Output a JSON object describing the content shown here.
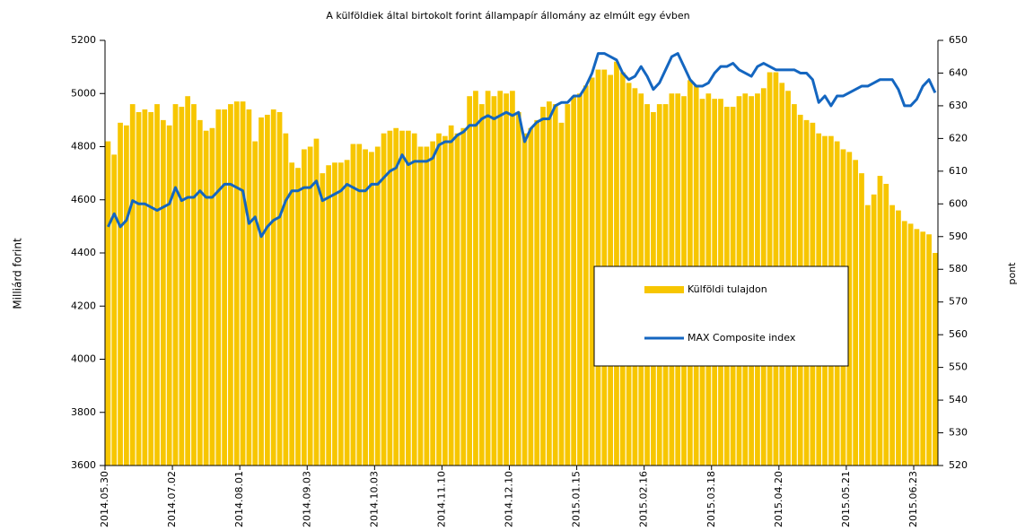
{
  "chart_data": {
    "type": "bar",
    "title": "A külföldiek által birtokolt forint állampapír állomány az elmúlt egy évben",
    "y_label": "Milliárd forint",
    "y2_label": "pont",
    "categories": [
      "2014.05.30",
      null,
      null,
      null,
      null,
      null,
      null,
      null,
      null,
      null,
      null,
      "2014.07.02",
      null,
      null,
      null,
      null,
      null,
      null,
      null,
      null,
      null,
      null,
      "2014.08.01",
      null,
      null,
      null,
      null,
      null,
      null,
      null,
      null,
      null,
      null,
      "2014.09.03",
      null,
      null,
      null,
      null,
      null,
      null,
      null,
      null,
      null,
      null,
      "2014.10.03",
      null,
      null,
      null,
      null,
      null,
      null,
      null,
      null,
      null,
      null,
      "2014.11.10",
      null,
      null,
      null,
      null,
      null,
      null,
      null,
      null,
      null,
      null,
      "2014.12.10",
      null,
      null,
      null,
      null,
      null,
      null,
      null,
      null,
      null,
      null,
      "2015.01.15",
      null,
      null,
      null,
      null,
      null,
      null,
      null,
      null,
      null,
      null,
      "2015.02.16",
      null,
      null,
      null,
      null,
      null,
      null,
      null,
      null,
      null,
      null,
      "2015.03.18",
      null,
      null,
      null,
      null,
      null,
      null,
      null,
      null,
      null,
      null,
      "2015.04.20",
      null,
      null,
      null,
      null,
      null,
      null,
      null,
      null,
      null,
      null,
      "2015.05.21",
      null,
      null,
      null,
      null,
      null,
      null,
      null,
      null,
      null,
      null,
      "2015.06.23",
      null,
      null,
      null
    ],
    "series": [
      {
        "name": "Külföldi tulajdon",
        "color": "#f7c600",
        "type": "bar",
        "axis": "y",
        "values": [
          4820,
          4770,
          4890,
          4880,
          4960,
          4930,
          4940,
          4930,
          4960,
          4900,
          4880,
          4960,
          4950,
          4990,
          4960,
          4900,
          4860,
          4870,
          4940,
          4940,
          4960,
          4970,
          4970,
          4940,
          4820,
          4910,
          4920,
          4940,
          4930,
          4850,
          4740,
          4720,
          4790,
          4800,
          4830,
          4700,
          4730,
          4740,
          4740,
          4750,
          4810,
          4810,
          4790,
          4780,
          4800,
          4850,
          4860,
          4870,
          4860,
          4860,
          4850,
          4800,
          4800,
          4820,
          4850,
          4840,
          4880,
          4850,
          4870,
          4990,
          5010,
          4960,
          5010,
          4990,
          5010,
          5000,
          5010,
          4930,
          4850,
          4870,
          4900,
          4950,
          4970,
          4960,
          4890,
          4960,
          4990,
          5000,
          5030,
          5060,
          5090,
          5090,
          5070,
          5120,
          5080,
          5040,
          5020,
          5000,
          4960,
          4930,
          4960,
          4960,
          5000,
          5000,
          4990,
          5050,
          5030,
          4980,
          5000,
          4980,
          4980,
          4950,
          4950,
          4990,
          5000,
          4990,
          5000,
          5020,
          5080,
          5080,
          5040,
          5010,
          4960,
          4920,
          4900,
          4890,
          4850,
          4840,
          4840,
          4820,
          4790,
          4780,
          4750,
          4700,
          4580,
          4620,
          4690,
          4660,
          4580,
          4560,
          4520,
          4510,
          4490,
          4480,
          4470,
          4400
        ]
      },
      {
        "name": "MAX Composite index",
        "color": "#1466c0",
        "type": "line",
        "axis": "y2",
        "values": [
          593,
          597,
          593,
          595,
          601,
          600,
          600,
          599,
          598,
          599,
          600,
          605,
          601,
          602,
          602,
          604,
          602,
          602,
          604,
          606,
          606,
          605,
          604,
          594,
          596,
          590,
          593,
          595,
          596,
          601,
          604,
          604,
          605,
          605,
          607,
          601,
          602,
          603,
          604,
          606,
          605,
          604,
          604,
          606,
          606,
          608,
          610,
          611,
          615,
          612,
          613,
          613,
          613,
          614,
          618,
          619,
          619,
          621,
          622,
          624,
          624,
          626,
          627,
          626,
          627,
          628,
          627,
          628,
          619,
          623,
          625,
          626,
          626,
          630,
          631,
          631,
          633,
          633,
          636,
          640,
          646,
          646,
          645,
          644,
          640,
          638,
          639,
          642,
          639,
          635,
          637,
          641,
          645,
          646,
          642,
          638,
          636,
          636,
          637,
          640,
          642,
          642,
          643,
          641,
          640,
          639,
          642,
          643,
          642,
          641,
          641,
          641,
          641,
          640,
          640,
          638,
          631,
          633,
          630,
          633,
          633,
          634,
          635,
          636,
          636,
          637,
          638,
          638,
          638,
          635,
          630,
          630,
          632,
          636,
          638,
          634
        ]
      }
    ],
    "ylim": [
      3600,
      5200
    ],
    "yticks": [
      3600,
      3800,
      4000,
      4200,
      4400,
      4600,
      4800,
      5000,
      5200
    ],
    "y2lim": [
      520,
      650
    ],
    "y2ticks": [
      520,
      530,
      540,
      550,
      560,
      570,
      580,
      590,
      600,
      610,
      620,
      630,
      640,
      650
    ]
  }
}
